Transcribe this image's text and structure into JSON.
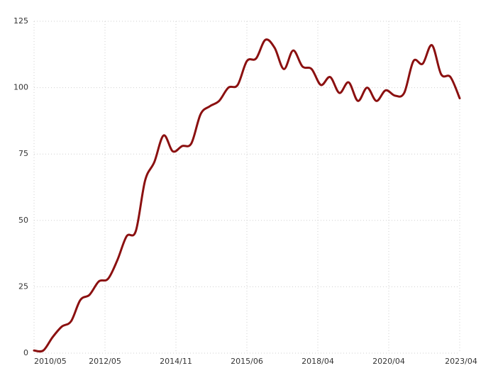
{
  "chart_data": {
    "type": "line",
    "title": "",
    "xlabel": "",
    "ylabel": "",
    "grid": true,
    "ylim": [
      0,
      125
    ],
    "y_ticks": [
      0,
      25,
      50,
      75,
      100,
      125
    ],
    "x_tick_labels": [
      "2010/05",
      "2012/05",
      "2014/11",
      "2015/06",
      "2018/04",
      "2020/04",
      "2023/04"
    ],
    "line_color": "#8b1010",
    "series": [
      {
        "name": "",
        "color": "#8b1010",
        "values": [
          1,
          1,
          6,
          10,
          12,
          20,
          22,
          27,
          28,
          35,
          44,
          46,
          65,
          72,
          82,
          76,
          78,
          79,
          90,
          93,
          95,
          100,
          101,
          110,
          111,
          118,
          115,
          107,
          114,
          108,
          107,
          101,
          104,
          98,
          102,
          95,
          100,
          95,
          99,
          97,
          98,
          110,
          109,
          116,
          105,
          104,
          96
        ]
      }
    ]
  }
}
